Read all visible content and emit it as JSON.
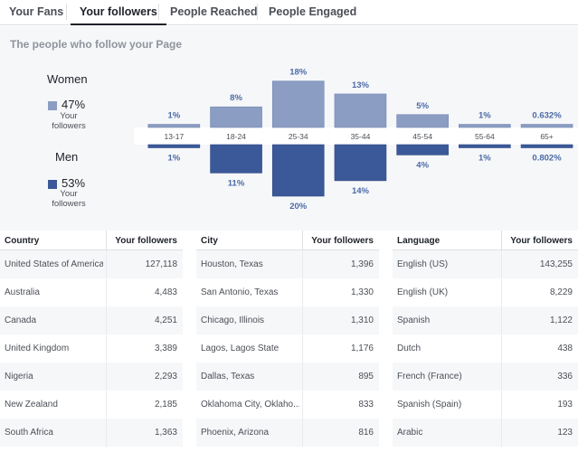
{
  "tabs": [
    {
      "label": "Your Fans",
      "active": false
    },
    {
      "label": "Your followers",
      "active": true
    },
    {
      "label": "People Reached",
      "active": false
    },
    {
      "label": "People Engaged",
      "active": false
    }
  ],
  "section_title": "The people who follow your Page",
  "legend": {
    "women": {
      "title": "Women",
      "percent": "47%",
      "sub": "Your followers",
      "color": "#8b9dc3"
    },
    "men": {
      "title": "Men",
      "percent": "53%",
      "sub": "Your followers",
      "color": "#3b5998"
    }
  },
  "chart_data": {
    "type": "bar",
    "categories": [
      "13-17",
      "18-24",
      "25-34",
      "35-44",
      "45-54",
      "55-64",
      "65+"
    ],
    "series": [
      {
        "name": "Women",
        "values": [
          1,
          8,
          18,
          13,
          5,
          1,
          0.632
        ],
        "labels": [
          "1%",
          "8%",
          "18%",
          "13%",
          "5%",
          "1%",
          "0.632%"
        ],
        "color": "#8b9dc3"
      },
      {
        "name": "Men",
        "values": [
          1,
          11,
          20,
          14,
          4,
          1,
          0.802
        ],
        "labels": [
          "1%",
          "11%",
          "20%",
          "14%",
          "4%",
          "1%",
          "0.802%"
        ],
        "color": "#3b5998"
      }
    ]
  },
  "tables": [
    {
      "header": [
        "Country",
        "Your followers"
      ],
      "rows": [
        [
          "United States of America",
          "127,118"
        ],
        [
          "Australia",
          "4,483"
        ],
        [
          "Canada",
          "4,251"
        ],
        [
          "United Kingdom",
          "3,389"
        ],
        [
          "Nigeria",
          "2,293"
        ],
        [
          "New Zealand",
          "2,185"
        ],
        [
          "South Africa",
          "1,363"
        ]
      ]
    },
    {
      "header": [
        "City",
        "Your followers"
      ],
      "rows": [
        [
          "Houston, Texas",
          "1,396"
        ],
        [
          "San Antonio, Texas",
          "1,330"
        ],
        [
          "Chicago, Illinois",
          "1,310"
        ],
        [
          "Lagos, Lagos State",
          "1,176"
        ],
        [
          "Dallas, Texas",
          "895"
        ],
        [
          "Oklahoma City, Oklaho...",
          "833"
        ],
        [
          "Phoenix, Arizona",
          "816"
        ]
      ]
    },
    {
      "header": [
        "Language",
        "Your followers"
      ],
      "rows": [
        [
          "English (US)",
          "143,255"
        ],
        [
          "English (UK)",
          "8,229"
        ],
        [
          "Spanish",
          "1,122"
        ],
        [
          "Dutch",
          "438"
        ],
        [
          "French (France)",
          "336"
        ],
        [
          "Spanish (Spain)",
          "193"
        ],
        [
          "Arabic",
          "123"
        ]
      ]
    }
  ]
}
